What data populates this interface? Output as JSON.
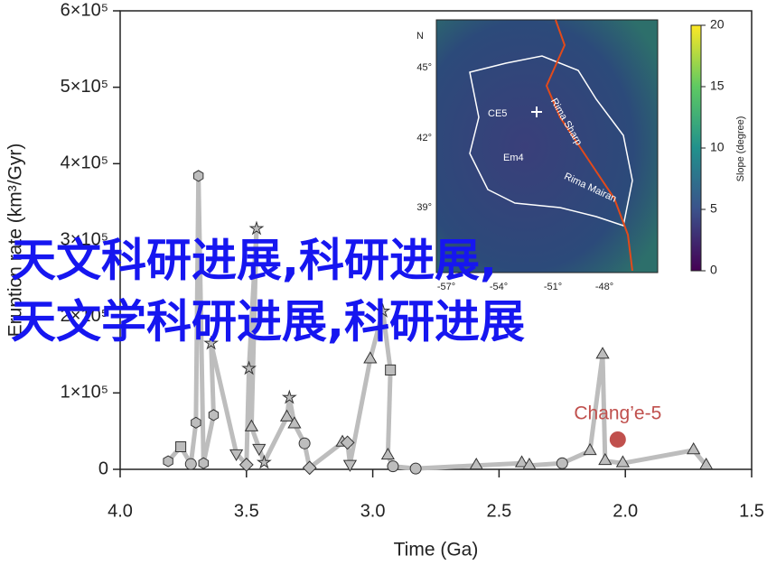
{
  "chart_data": {
    "type": "line",
    "x_label": "Time (Ga)",
    "y_label": "Eruption rate (km³/Gyr)",
    "xlim": [
      4.0,
      1.5
    ],
    "xticks": [
      {
        "value": 4.0,
        "label": "4.0"
      },
      3.5,
      {
        "value": 3.0,
        "label": "3.0"
      },
      2.5,
      {
        "value": 2.0,
        "label": "2.0"
      },
      1.5
    ],
    "ylim": [
      0,
      600000
    ],
    "yticks": [
      0,
      {
        "value": 100000,
        "label": "1×10⁵"
      },
      {
        "value": 200000,
        "label": "2×10⁵"
      },
      {
        "value": 300000,
        "label": "3×10⁵"
      },
      {
        "value": 400000,
        "label": "4×10⁵"
      },
      {
        "value": 500000,
        "label": "5×10⁵"
      },
      {
        "value": 600000,
        "label": "6×10⁵"
      }
    ],
    "series": [
      {
        "color": "#bdbdbd",
        "x": [
          3.81,
          3.76,
          3.72,
          3.7,
          3.69,
          3.67,
          3.63,
          3.64,
          3.54,
          3.5,
          3.49,
          3.46,
          3.48,
          3.45,
          3.43,
          3.34,
          3.33,
          3.31,
          3.27,
          3.25,
          3.12,
          3.1,
          3.09,
          3.01,
          2.96,
          2.93,
          2.94,
          2.92,
          2.83,
          2.59,
          2.41,
          2.38,
          2.25,
          2.14,
          2.09,
          2.08,
          2.01,
          1.73,
          1.68
        ],
        "values": [
          10600,
          29500,
          7000,
          61000,
          384000,
          8000,
          71000,
          165000,
          21000,
          6000,
          132000,
          315000,
          55000,
          28000,
          9000,
          68000,
          94000,
          59000,
          34000,
          2000,
          35000,
          35000,
          7000,
          144000,
          207000,
          130000,
          18000,
          4000,
          1000,
          5000,
          8000,
          5000,
          8000,
          24000,
          150000,
          11000,
          8000,
          25000,
          5000
        ],
        "markers": [
          "hexagon",
          "square",
          "circle",
          "hexagon",
          "hexagon",
          "hexagon",
          "hexagon",
          "star",
          "triangle-down",
          "diamond",
          "star",
          "star",
          "triangle",
          "triangle-down",
          "star",
          "triangle",
          "star",
          "triangle",
          "circle",
          "diamond",
          "triangle",
          "diamond",
          "triangle-down",
          "triangle",
          "star",
          "square",
          "triangle",
          "circle",
          "circle",
          "triangle",
          "triangle",
          "triangle",
          "circle",
          "triangle",
          "triangle",
          "triangle",
          "triangle",
          "triangle",
          "triangle"
        ]
      }
    ],
    "highlight": {
      "name": "Chang’e-5",
      "x": 2.03,
      "value": 39000,
      "color": "#c0504d"
    }
  },
  "inset": {
    "north": "N",
    "lat_ticks": [
      "45°",
      "42°",
      "39°"
    ],
    "lon_ticks": [
      "-57°",
      "-54°",
      "-51°",
      "-48°"
    ],
    "labels": [
      "CE5",
      "Em4",
      "Rima Sharp",
      "Rima Mairan"
    ],
    "colorbar": {
      "label": "Slope (degree)",
      "lim": [
        0,
        20
      ],
      "ticks": [
        0,
        5,
        10,
        15,
        20
      ]
    }
  },
  "overlay": [
    "天文科研进展,科研进展,",
    "天文学科研进展,科研进展"
  ]
}
